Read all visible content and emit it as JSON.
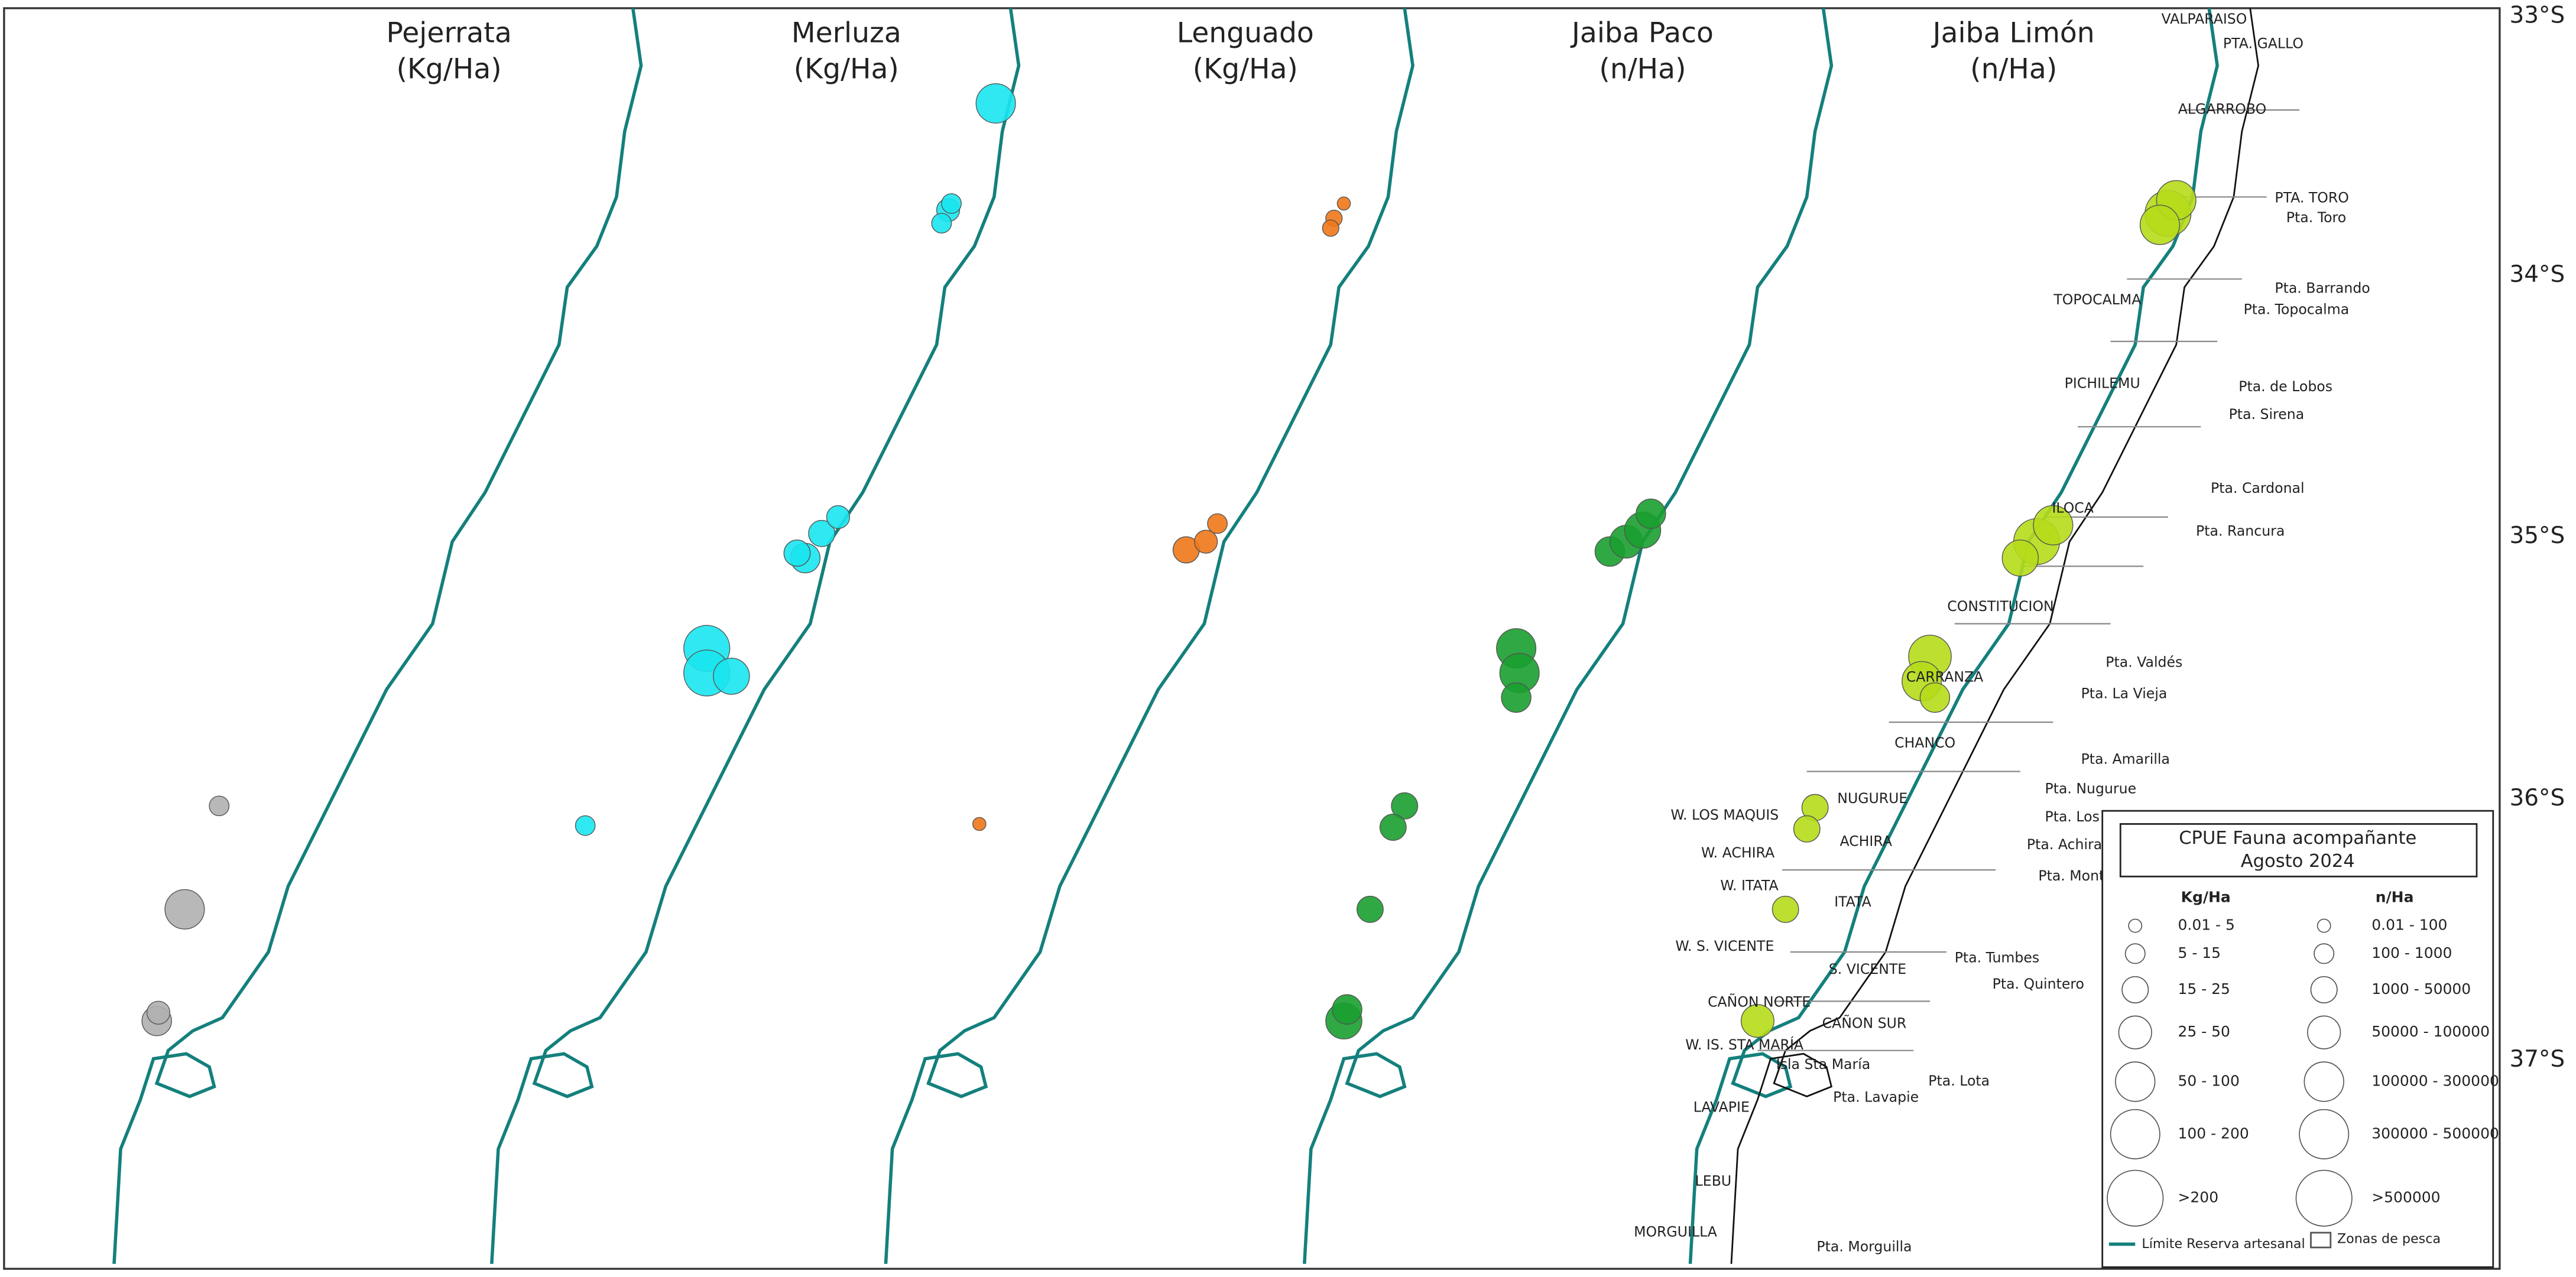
{
  "panels": [
    {
      "title": "Pejerrata",
      "unit": "(Kg/Ha)"
    },
    {
      "title": "Merluza",
      "unit": "(Kg/Ha)"
    },
    {
      "title": "Lenguado",
      "unit": "(Kg/Ha)"
    },
    {
      "title": "Jaiba Paco",
      "unit": "(n/Ha)"
    },
    {
      "title": "Jaiba Limón",
      "unit": "(n/Ha)"
    }
  ],
  "latitudes": [
    "33°S",
    "34°S",
    "35°S",
    "36°S",
    "37°S"
  ],
  "places": [
    "VALPARAISO",
    "PTA. GALLO",
    "ALGARROBO",
    "PTA. TORO",
    "Pta. Toro",
    "Pta. Barrando",
    "Pta. Topocalma",
    "TOPOCALMA",
    "PICHILEMU",
    "Pta. de Lobos",
    "Pta. Sirena",
    "Pta. Cardonal",
    "ILOCA",
    "Pta. Rancura",
    "CONSTITUCION",
    "Pta. Valdés",
    "CARRANZA",
    "Pta. La Vieja",
    "CHANCO",
    "Pta. Amarilla",
    "Pta. Nugurue",
    "NUGURUE",
    "W. LOS MAQUIS",
    "Pta. Los Maqu",
    "ACHIRA",
    "Pta. Achira",
    "W. ACHIRA",
    "W. ITATA",
    "Pta. Monte del",
    "ITATA",
    "W. S. VICENTE",
    "Pta. Tumbes",
    "S. VICENTE",
    "Pta. Quintero",
    "CAÑON NORTE",
    "CAÑON SUR",
    "W. IS. STA MARÍA",
    "Isla Sta María",
    "Pta. Lota",
    "Pta. Lavapie",
    "LAVAPIE",
    "LEBU",
    "MORGUILLA",
    "Pta. Morguilla"
  ],
  "legend": {
    "title": "CPUE Fauna acompañante",
    "subtitle": "Agosto 2024",
    "headers": [
      "Kg/Ha",
      "n/Ha"
    ],
    "kg": [
      "0.01 - 5",
      "5 - 15",
      "15 - 25",
      "25 - 50",
      "50 - 100",
      "100 - 200",
      ">200"
    ],
    "n": [
      "0.01 - 100",
      "100 - 1000",
      "1000 - 50000",
      "50000 - 100000",
      "100000 - 300000",
      "300000 - 500000",
      ">500000"
    ],
    "footer": [
      "Límite Reserva artesanal",
      "Zonas de pesca"
    ]
  }
}
